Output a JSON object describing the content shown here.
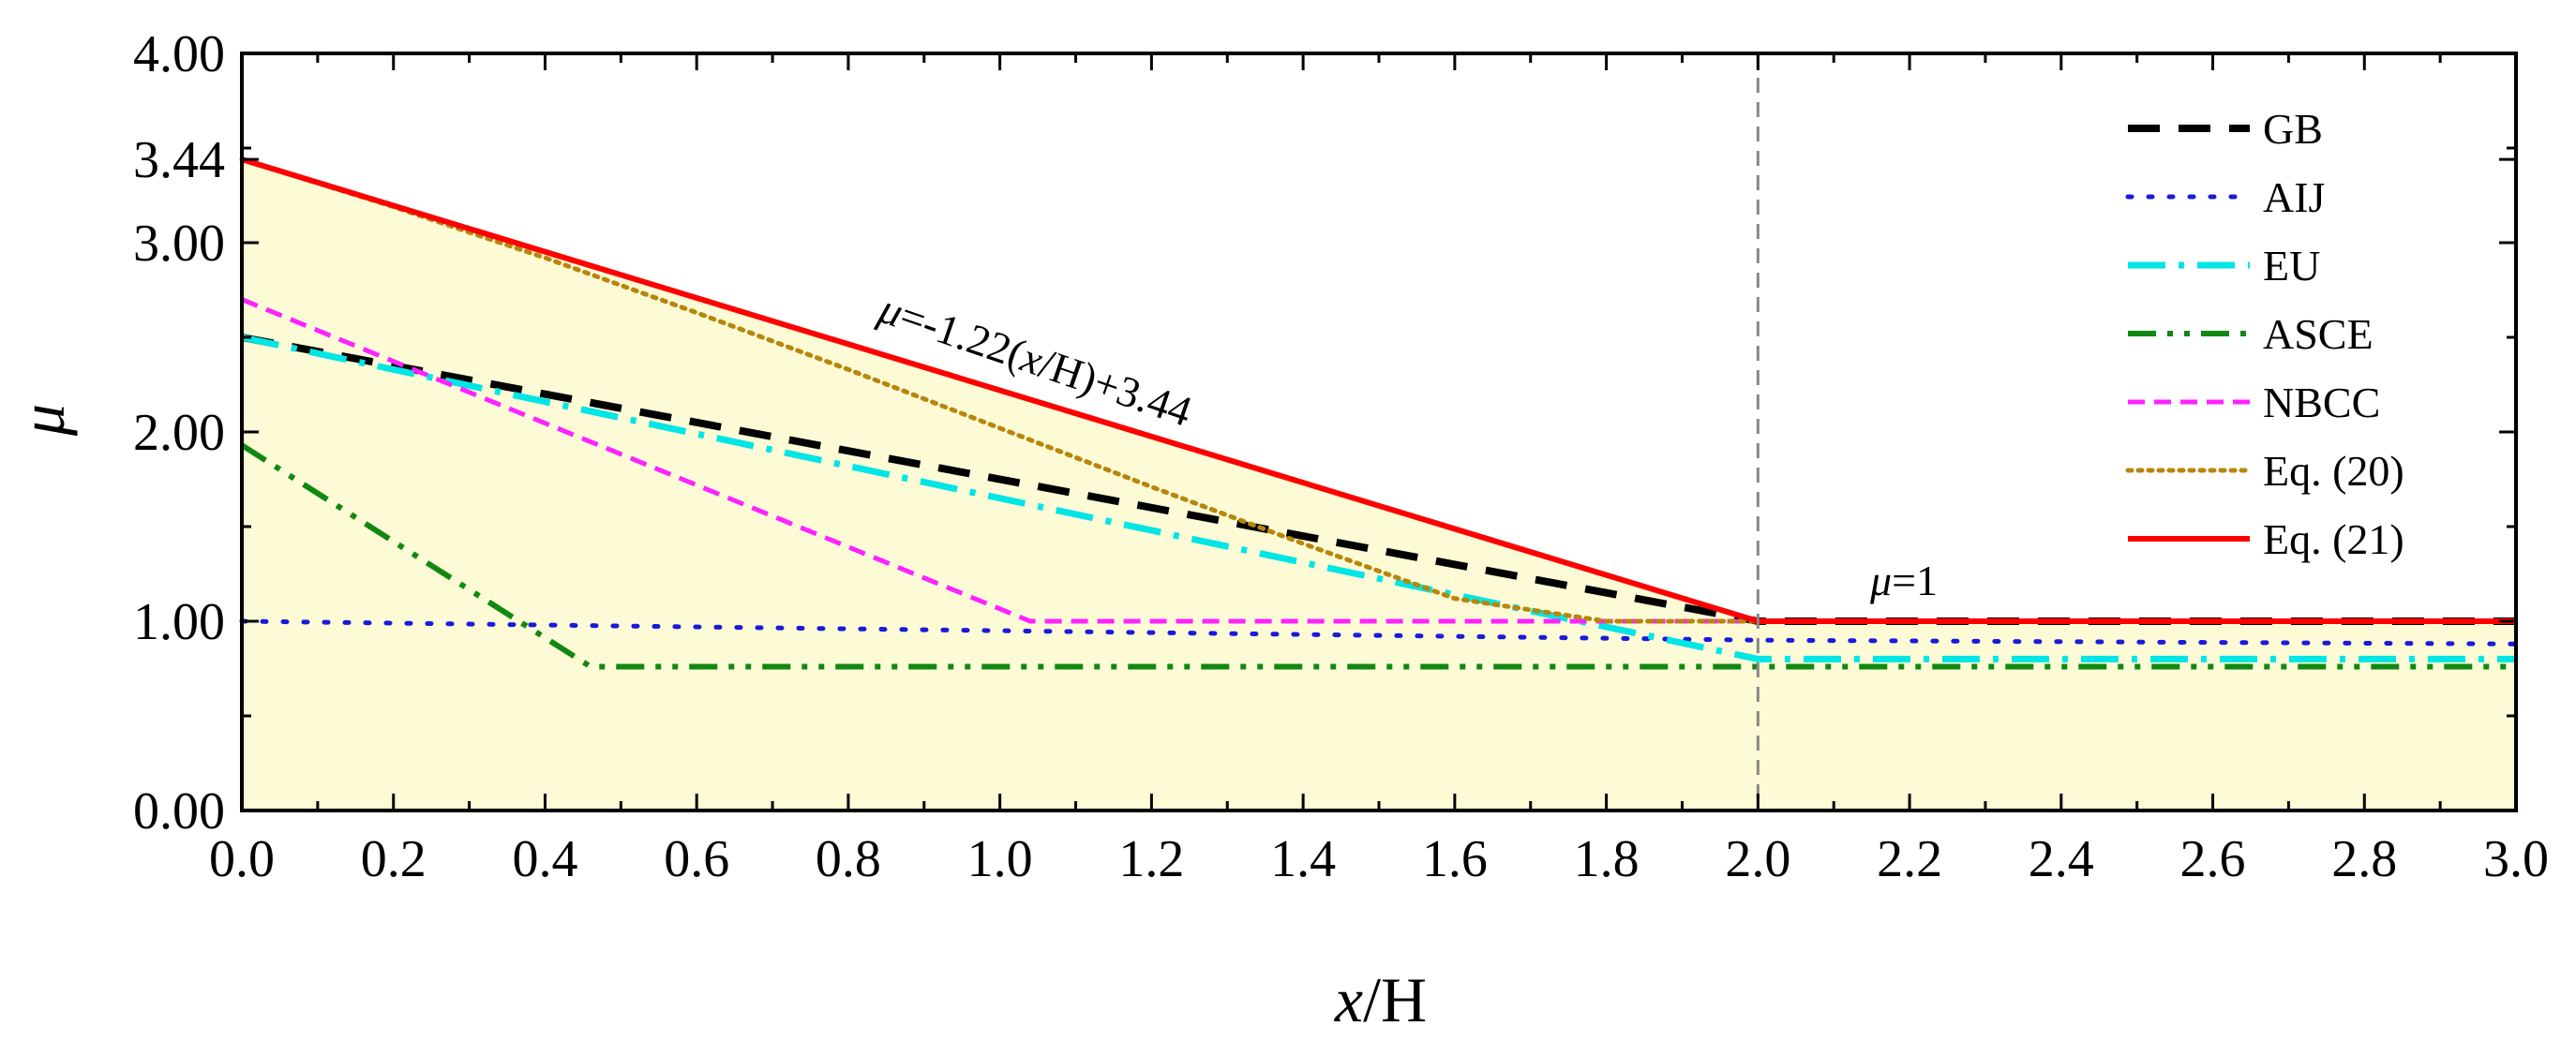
{
  "chart_data": {
    "type": "line",
    "title": "",
    "xlabel": {
      "italic": "x",
      "rest": "/H"
    },
    "ylabel": "μ",
    "xlim": [
      0,
      3
    ],
    "ylim": [
      0,
      4
    ],
    "x_ticks": [
      "0.0",
      "0.2",
      "0.4",
      "0.6",
      "0.8",
      "1.0",
      "1.2",
      "1.4",
      "1.6",
      "1.8",
      "2.0",
      "2.2",
      "2.4",
      "2.6",
      "2.8",
      "3.0"
    ],
    "y_ticks": [
      {
        "value": 0.0,
        "label": "0.00"
      },
      {
        "value": 1.0,
        "label": "1.00"
      },
      {
        "value": 2.0,
        "label": "2.00"
      },
      {
        "value": 3.0,
        "label": "3.00"
      },
      {
        "value": 3.44,
        "label": "3.44"
      },
      {
        "value": 4.0,
        "label": "4.00"
      }
    ],
    "shaded_region": {
      "fill": "#fcfbd6",
      "under_series": "Eq. (21)"
    },
    "reference_line": {
      "x": 2.0,
      "color": "#888888",
      "style": "dashed"
    },
    "series": [
      {
        "name": "GB",
        "color": "#000000",
        "style": "dash",
        "x": [
          0,
          2.0,
          2.0,
          3.0
        ],
        "y": [
          2.5,
          1.0,
          1.0,
          1.0
        ]
      },
      {
        "name": "AIJ",
        "color": "#1a1adb",
        "style": "dot",
        "x": [
          0,
          2.0,
          3.0
        ],
        "y": [
          1.0,
          0.9,
          0.88
        ]
      },
      {
        "name": "EU",
        "color": "#00e5e5",
        "style": "dashdot",
        "x": [
          0,
          2.0,
          3.0
        ],
        "y": [
          2.5,
          0.8,
          0.8
        ]
      },
      {
        "name": "ASCE",
        "color": "#118811",
        "style": "dashdotdot",
        "x": [
          0,
          0.46,
          3.0
        ],
        "y": [
          1.93,
          0.76,
          0.76
        ]
      },
      {
        "name": "NBCC",
        "color": "#ff22ff",
        "style": "shortdash",
        "x": [
          0,
          1.04,
          3.0
        ],
        "y": [
          2.7,
          1.0,
          1.0
        ]
      },
      {
        "name": "Eq. (20)",
        "color": "#b8860b",
        "style": "densedot",
        "x": [
          0,
          0.2,
          0.4,
          0.6,
          0.8,
          1.0,
          1.2,
          1.4,
          1.6,
          1.8,
          2.0
        ],
        "y": [
          3.44,
          3.19,
          2.92,
          2.63,
          2.33,
          2.02,
          1.71,
          1.41,
          1.12,
          1.0,
          1.0
        ]
      },
      {
        "name": "Eq. (21)",
        "color": "#ff0000",
        "style": "solid",
        "x": [
          0,
          2.0,
          3.0
        ],
        "y": [
          3.44,
          1.0,
          1.0
        ]
      }
    ],
    "annotations": [
      {
        "text_italic": "μ",
        "text_rest": "=-1.22(x/H)+3.44",
        "part1": "=-1.22(",
        "part_x": "x",
        "part2": "/H)+3.44"
      },
      {
        "text_italic": "μ",
        "text_rest": "=1"
      }
    ],
    "legend_position": "top-right"
  }
}
